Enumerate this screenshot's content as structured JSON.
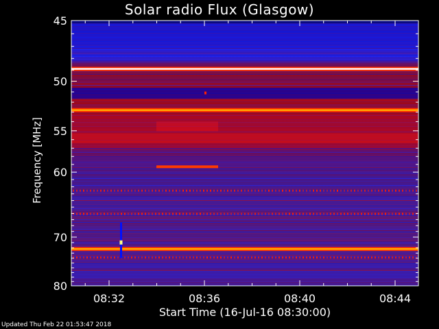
{
  "chart_data": {
    "type": "heatmap",
    "title": "Solar radio Flux (Glasgow)",
    "xlabel": "Start Time (16-Jul-16 08:30:00)",
    "ylabel": "Frequency [MHz]",
    "x_ticks": [
      "08:32",
      "08:36",
      "08:40",
      "08:44"
    ],
    "y_ticks": [
      45,
      50,
      55,
      60,
      70,
      80
    ],
    "ylim": [
      45,
      80
    ],
    "x_range_minutes": [
      0,
      15
    ],
    "bright_bands_mhz": [
      48.9,
      52.8,
      72.2
    ],
    "colormap": [
      "#00008c",
      "#2222ff",
      "#7a1a8c",
      "#c00010",
      "#ff2a00",
      "#ffb000",
      "#ffffff"
    ]
  },
  "footer": "Updated Thu Feb 22 01:53:47 2018"
}
